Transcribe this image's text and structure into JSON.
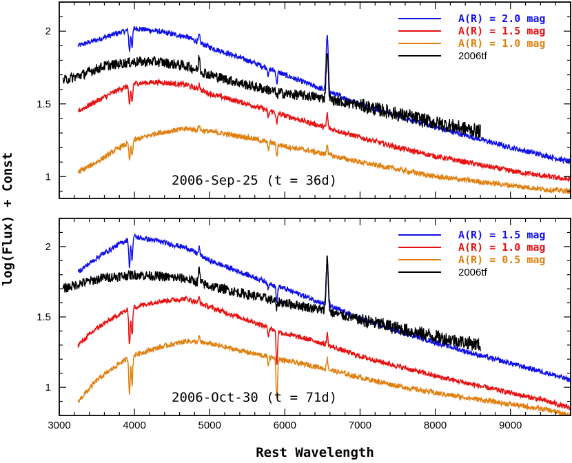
{
  "chart_data": {
    "type": "line",
    "xlabel": "Rest Wavelength",
    "ylabel": "log(Flux) + Const",
    "xlim": [
      3000,
      9800
    ],
    "x_ticks": [
      3000,
      4000,
      5000,
      6000,
      7000,
      8000,
      9000
    ],
    "panels": [
      {
        "annotation": "2006-Sep-25 (t = 36d)",
        "ylim": [
          0.85,
          2.2
        ],
        "y_ticks": [
          1,
          1.5,
          2
        ],
        "legend_position": "top-right",
        "legend": [
          {
            "label": "A(R) = 2.0 mag",
            "color": "#1010e8"
          },
          {
            "label": "A(R) = 1.5 mag",
            "color": "#e81010"
          },
          {
            "label": "A(R) = 1.0 mag",
            "color": "#e08010"
          },
          {
            "label": "2006tf",
            "color": "#000000"
          }
        ],
        "series": [
          {
            "name": "A(R) = 2.0 mag",
            "color": "#1010e8",
            "x_range": [
              3250,
              9800
            ],
            "noise": 0.018,
            "x": [
              3250,
              3500,
              3800,
              4000,
              4300,
              4700,
              5000,
              5500,
              6000,
              6400,
              7000,
              7500,
              8000,
              8500,
              9000,
              9500,
              9800
            ],
            "y": [
              1.9,
              1.94,
              1.99,
              2.02,
              2.0,
              1.96,
              1.89,
              1.8,
              1.7,
              1.62,
              1.5,
              1.42,
              1.34,
              1.27,
              1.2,
              1.14,
              1.1
            ],
            "features": [
              [
                3934,
                -0.15
              ],
              [
                3968,
                -0.12
              ],
              [
                4861,
                0.05
              ],
              [
                5780,
                -0.05
              ],
              [
                5893,
                -0.08
              ],
              [
                6563,
                0.38
              ]
            ]
          },
          {
            "name": "A(R) = 1.5 mag",
            "color": "#e81010",
            "x_range": [
              3250,
              9800
            ],
            "noise": 0.018,
            "x": [
              3250,
              3500,
              3800,
              4000,
              4300,
              4700,
              5000,
              5500,
              6000,
              6400,
              7000,
              7500,
              8000,
              8500,
              9000,
              9500,
              9800
            ],
            "y": [
              1.45,
              1.52,
              1.6,
              1.64,
              1.65,
              1.63,
              1.57,
              1.5,
              1.42,
              1.36,
              1.27,
              1.2,
              1.14,
              1.09,
              1.04,
              1.0,
              0.98
            ],
            "features": [
              [
                3934,
                -0.15
              ],
              [
                3968,
                -0.12
              ],
              [
                4861,
                0.04
              ],
              [
                5780,
                -0.05
              ],
              [
                5893,
                -0.08
              ],
              [
                6563,
                0.1
              ]
            ]
          },
          {
            "name": "A(R) = 1.0 mag",
            "color": "#e08010",
            "x_range": [
              3250,
              9800
            ],
            "noise": 0.018,
            "x": [
              3250,
              3500,
              3800,
              4000,
              4300,
              4700,
              5000,
              5500,
              6000,
              6400,
              7000,
              7500,
              8000,
              8500,
              9000,
              9500,
              9800
            ],
            "y": [
              1.03,
              1.1,
              1.2,
              1.25,
              1.3,
              1.33,
              1.31,
              1.27,
              1.21,
              1.17,
              1.1,
              1.05,
              1.0,
              0.97,
              0.94,
              0.91,
              0.9
            ],
            "features": [
              [
                3934,
                -0.12
              ],
              [
                3968,
                -0.1
              ],
              [
                4861,
                0.04
              ],
              [
                5780,
                -0.05
              ],
              [
                5893,
                -0.08
              ],
              [
                6563,
                0.08
              ]
            ]
          },
          {
            "name": "2006tf",
            "color": "#000000",
            "x_range": [
              3050,
              8600
            ],
            "noise": 0.035,
            "x": [
              3050,
              3300,
              3600,
              4000,
              4300,
              4700,
              5000,
              5500,
              6000,
              6400,
              7000,
              7500,
              8000,
              8600
            ],
            "y": [
              1.66,
              1.7,
              1.76,
              1.79,
              1.79,
              1.76,
              1.7,
              1.63,
              1.57,
              1.55,
              1.49,
              1.43,
              1.37,
              1.31
            ],
            "features": [
              [
                4861,
                0.1
              ],
              [
                5893,
                -0.04
              ],
              [
                6563,
                0.33
              ]
            ]
          }
        ]
      },
      {
        "annotation": "2006-Oct-30 (t = 71d)",
        "ylim": [
          0.8,
          2.2
        ],
        "y_ticks": [
          1,
          1.5,
          2
        ],
        "legend_position": "top-right",
        "legend": [
          {
            "label": "A(R) = 1.5 mag",
            "color": "#1010e8"
          },
          {
            "label": "A(R) = 1.0 mag",
            "color": "#e81010"
          },
          {
            "label": "A(R) = 0.5 mag",
            "color": "#e08010"
          },
          {
            "label": "2006tf",
            "color": "#000000"
          }
        ],
        "series": [
          {
            "name": "A(R) = 1.5 mag",
            "color": "#1010e8",
            "x_range": [
              3250,
              9800
            ],
            "noise": 0.018,
            "x": [
              3250,
              3500,
              3800,
              4000,
              4300,
              4700,
              5000,
              5500,
              6000,
              6400,
              7000,
              7500,
              8000,
              8500,
              9000,
              9500,
              9800
            ],
            "y": [
              1.82,
              1.92,
              2.02,
              2.07,
              2.04,
              1.99,
              1.9,
              1.8,
              1.7,
              1.62,
              1.49,
              1.4,
              1.32,
              1.24,
              1.17,
              1.1,
              1.05
            ],
            "features": [
              [
                3934,
                -0.2
              ],
              [
                3968,
                -0.15
              ],
              [
                4861,
                0.05
              ],
              [
                5780,
                -0.05
              ],
              [
                5893,
                -0.12
              ],
              [
                6563,
                0.3
              ]
            ]
          },
          {
            "name": "A(R) = 1.0 mag",
            "color": "#e81010",
            "x_range": [
              3250,
              9800
            ],
            "noise": 0.018,
            "x": [
              3250,
              3500,
              3800,
              4000,
              4300,
              4700,
              5000,
              5500,
              6000,
              6400,
              7000,
              7500,
              8000,
              8500,
              9000,
              9500,
              9800
            ],
            "y": [
              1.3,
              1.42,
              1.52,
              1.57,
              1.61,
              1.63,
              1.57,
              1.48,
              1.38,
              1.33,
              1.22,
              1.15,
              1.08,
              1.02,
              0.96,
              0.9,
              0.85
            ],
            "features": [
              [
                3934,
                -0.25
              ],
              [
                3968,
                -0.2
              ],
              [
                4861,
                0.04
              ],
              [
                5780,
                -0.05
              ],
              [
                5893,
                -0.25
              ],
              [
                6563,
                0.08
              ]
            ]
          },
          {
            "name": "A(R) = 0.5 mag",
            "color": "#e08010",
            "x_range": [
              3250,
              9800
            ],
            "noise": 0.018,
            "x": [
              3250,
              3500,
              3800,
              4000,
              4300,
              4700,
              5000,
              5500,
              6000,
              6400,
              7000,
              7500,
              8000,
              8500,
              9000,
              9500,
              9800
            ],
            "y": [
              0.9,
              1.05,
              1.17,
              1.23,
              1.28,
              1.33,
              1.31,
              1.25,
              1.19,
              1.15,
              1.07,
              1.01,
              0.96,
              0.92,
              0.88,
              0.84,
              0.8
            ],
            "features": [
              [
                3934,
                -0.25
              ],
              [
                3968,
                -0.2
              ],
              [
                4861,
                0.04
              ],
              [
                5780,
                -0.05
              ],
              [
                5893,
                -0.3
              ],
              [
                6563,
                0.08
              ]
            ]
          },
          {
            "name": "2006tf",
            "color": "#000000",
            "x_range": [
              3050,
              8600
            ],
            "noise": 0.035,
            "x": [
              3050,
              3300,
              3600,
              4000,
              4300,
              4700,
              5000,
              5500,
              6000,
              6400,
              7000,
              7500,
              8000,
              8600
            ],
            "y": [
              1.7,
              1.74,
              1.78,
              1.8,
              1.79,
              1.77,
              1.72,
              1.66,
              1.6,
              1.56,
              1.48,
              1.42,
              1.36,
              1.3
            ],
            "features": [
              [
                4861,
                0.1
              ],
              [
                5893,
                -0.06
              ],
              [
                6563,
                0.38
              ]
            ]
          }
        ]
      }
    ]
  }
}
